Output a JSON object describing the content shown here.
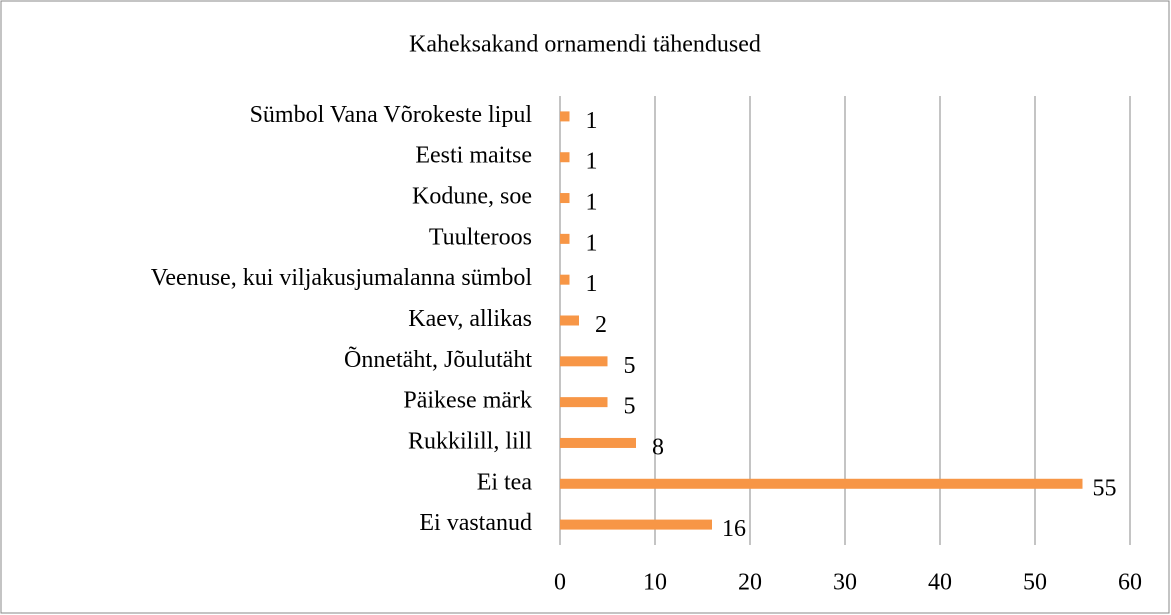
{
  "chart_data": {
    "type": "bar",
    "orientation": "horizontal",
    "title": "Kaheksakand ornamendi tähendused",
    "categories": [
      "Sümbol Vana Võrokeste lipul",
      "Eesti maitse",
      "Kodune, soe",
      "Tuulteroos",
      "Veenuse, kui viljakusjumalanna sümbol",
      "Kaev, allikas",
      "Õnnetäht, Jõulutäht",
      "Päikese märk",
      "Rukkilill, lill",
      "Ei tea",
      "Ei vastanud"
    ],
    "values": [
      1,
      1,
      1,
      1,
      1,
      2,
      5,
      5,
      8,
      55,
      16
    ],
    "color": "#f79646",
    "xlim": [
      0,
      60
    ],
    "xticks": [
      0,
      10,
      20,
      30,
      40,
      50,
      60
    ],
    "grid": true
  }
}
